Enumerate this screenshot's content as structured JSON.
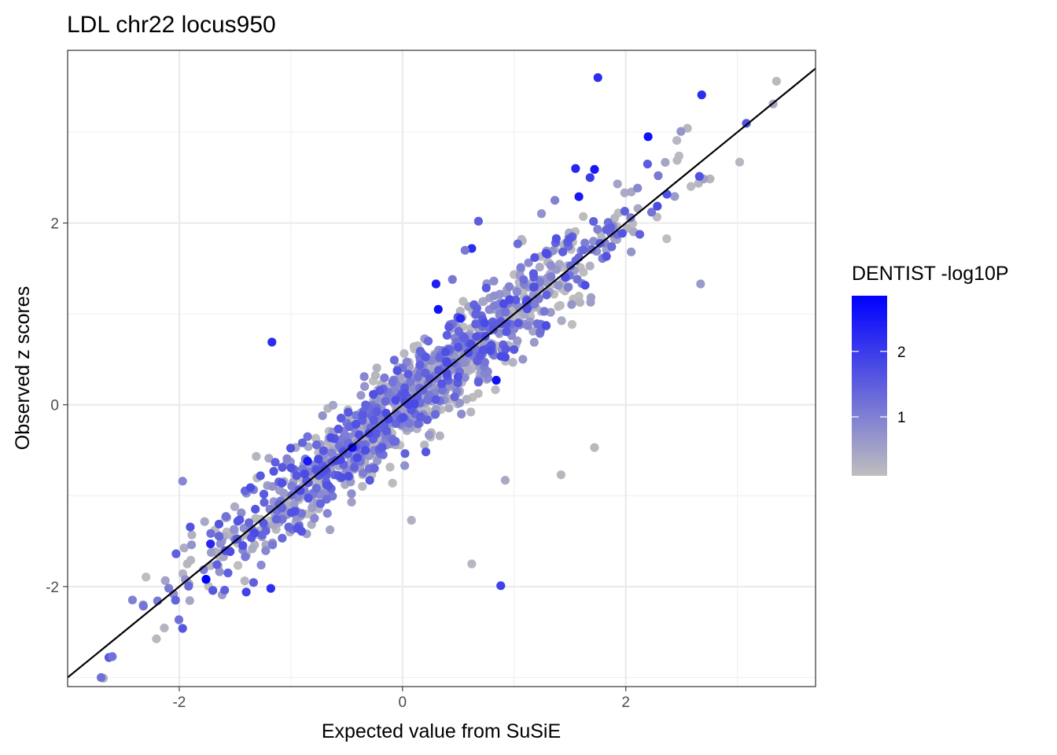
{
  "chart_data": {
    "type": "scatter",
    "title": "LDL chr22 locus950",
    "xlabel": "Expected value from SuSiE",
    "ylabel": "Observed z scores",
    "xlim": [
      -3.0,
      3.7
    ],
    "ylim": [
      -3.1,
      3.9
    ],
    "x_ticks": [
      -2,
      0,
      2
    ],
    "x_tick_labels": [
      "-2",
      "0",
      "2"
    ],
    "y_ticks": [
      -2,
      0,
      2
    ],
    "y_tick_labels": [
      "-2",
      "0",
      "2"
    ],
    "grid": true,
    "reference_line": {
      "intercept": 0,
      "slope": 1,
      "color": "#000000"
    },
    "legend": {
      "title": "DENTIST -log10P",
      "position": "right",
      "range": [
        0.1,
        2.85
      ],
      "ticks": [
        1,
        2
      ],
      "tick_labels": [
        "1",
        "2"
      ],
      "low_color": "#bebebe",
      "high_color": "#0000ff"
    },
    "highlighted_points": [
      {
        "x": 1.75,
        "y": 3.6,
        "p": 2.2
      },
      {
        "x": 2.68,
        "y": 3.41,
        "p": 2.2
      },
      {
        "x": 2.2,
        "y": 2.95,
        "p": 2.6
      },
      {
        "x": 1.55,
        "y": 2.6,
        "p": 2.3
      },
      {
        "x": 1.72,
        "y": 2.59,
        "p": 2.5
      },
      {
        "x": 1.58,
        "y": 2.29,
        "p": 2.5
      },
      {
        "x": 1.68,
        "y": 2.5,
        "p": 2.0
      },
      {
        "x": 0.68,
        "y": 2.02,
        "p": 1.5
      },
      {
        "x": 0.62,
        "y": 1.72,
        "p": 2.2
      },
      {
        "x": 0.3,
        "y": 1.33,
        "p": 2.4
      },
      {
        "x": 0.32,
        "y": 1.05,
        "p": 2.6
      },
      {
        "x": 0.52,
        "y": 0.95,
        "p": 2.3
      },
      {
        "x": -1.17,
        "y": 0.69,
        "p": 2.2
      },
      {
        "x": 0.84,
        "y": 0.27,
        "p": 2.6
      },
      {
        "x": -0.45,
        "y": -0.47,
        "p": 2.7
      },
      {
        "x": -0.85,
        "y": -0.62,
        "p": 2.5
      },
      {
        "x": -1.72,
        "y": -1.53,
        "p": 2.3
      },
      {
        "x": -1.76,
        "y": -1.92,
        "p": 2.85
      },
      {
        "x": -1.18,
        "y": -2.02,
        "p": 2.2
      },
      {
        "x": -1.4,
        "y": -2.06,
        "p": 1.9
      },
      {
        "x": 0.88,
        "y": -1.99,
        "p": 1.9
      },
      {
        "x": 0.62,
        "y": -1.75,
        "p": 0.2
      },
      {
        "x": 1.42,
        "y": -0.77,
        "p": 0.2
      },
      {
        "x": 0.92,
        "y": -0.83,
        "p": 0.4
      },
      {
        "x": 2.67,
        "y": 1.33,
        "p": 0.6
      },
      {
        "x": -2.63,
        "y": -2.78,
        "p": 1.6
      },
      {
        "x": -2.6,
        "y": -2.77,
        "p": 1.2
      },
      {
        "x": 3.32,
        "y": 3.31,
        "p": 0.4
      },
      {
        "x": 3.02,
        "y": 2.67,
        "p": 0.2
      },
      {
        "x": -1.97,
        "y": -0.84,
        "p": 0.9
      },
      {
        "x": 0.56,
        "y": 1.7,
        "p": 1.1
      },
      {
        "x": 1.72,
        "y": -0.47,
        "p": 0.2
      },
      {
        "x": 0.08,
        "y": -1.27,
        "p": 0.3
      },
      {
        "x": -1.97,
        "y": -2.46,
        "p": 1.6
      }
    ],
    "bulk_points": {
      "count": 1250,
      "distribution": "x from about -2.7 to 3.4, y approximately equal to x with spread of about 0.25",
      "p_range": [
        0.1,
        1.8
      ]
    }
  }
}
